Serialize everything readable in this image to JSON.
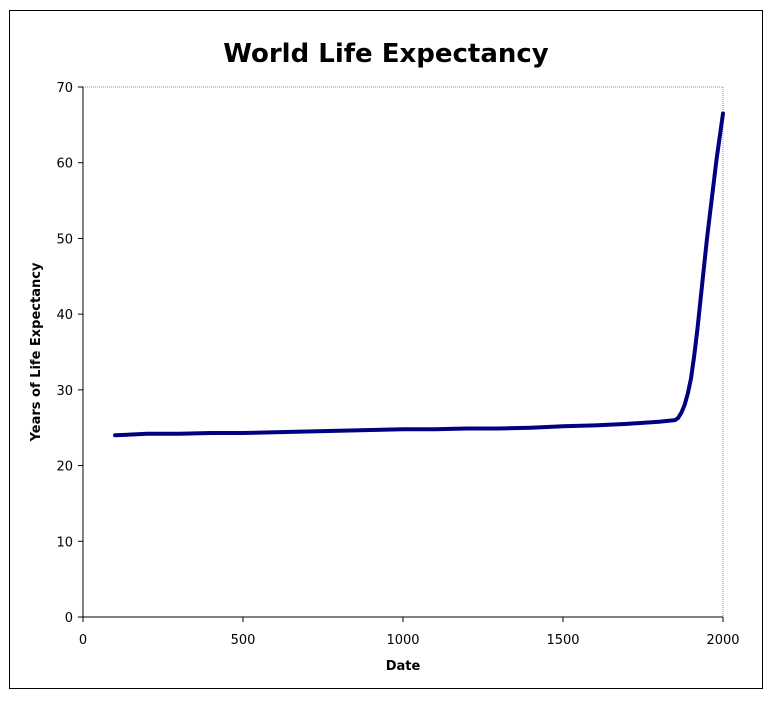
{
  "chart_data": {
    "type": "line",
    "title": "World Life Expectancy",
    "xlabel": "Date",
    "ylabel": "Years of Life Expectancy",
    "xlim": [
      0,
      2000
    ],
    "ylim": [
      0,
      70
    ],
    "x_ticks": [
      0,
      500,
      1000,
      1500,
      2000
    ],
    "y_ticks": [
      0,
      10,
      20,
      30,
      40,
      50,
      60,
      70
    ],
    "grid": false,
    "legend": "none",
    "series": [
      {
        "color": "#000080",
        "x": [
          100,
          200,
          300,
          400,
          500,
          600,
          700,
          800,
          900,
          1000,
          1100,
          1200,
          1300,
          1400,
          1500,
          1600,
          1700,
          1800,
          1850,
          1860,
          1870,
          1880,
          1890,
          1900,
          1910,
          1920,
          1930,
          1940,
          1950,
          1960,
          1970,
          1980,
          1990,
          2000
        ],
        "y": [
          24,
          24.2,
          24.2,
          24.3,
          24.3,
          24.4,
          24.5,
          24.6,
          24.7,
          24.8,
          24.8,
          24.9,
          24.9,
          25,
          25.2,
          25.3,
          25.5,
          25.8,
          26,
          26.3,
          27,
          28,
          29.5,
          31.5,
          34.5,
          38,
          42,
          46,
          50,
          53.5,
          57,
          60.5,
          63.5,
          66.5
        ]
      }
    ]
  }
}
